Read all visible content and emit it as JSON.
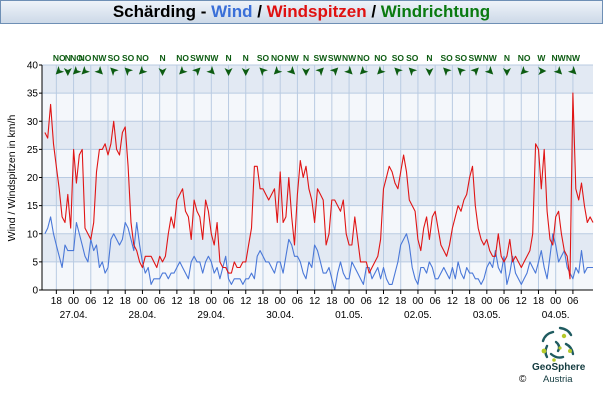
{
  "title": {
    "station": "Schärding",
    "sep1": " - ",
    "wind": "Wind",
    "sep2": " / ",
    "gusts": "Windspitzen",
    "sep3": " / ",
    "direction": "Windrichtung",
    "colors": {
      "station": "#000000",
      "wind": "#3a6fd8",
      "gusts": "#e01010",
      "direction": "#0a7a10"
    }
  },
  "logo": {
    "name": "GeoSphere",
    "sub": "Austria",
    "copyright": "©"
  },
  "chart_data": {
    "type": "line",
    "title": "Schärding - Wind / Windspitzen / Windrichtung",
    "xlabel": "",
    "ylabel": "Wind / Windspitzen in km/h",
    "ylim": [
      0,
      40
    ],
    "y_ticks": [
      0,
      5,
      10,
      15,
      20,
      25,
      30,
      35,
      40
    ],
    "xlim_hours": [
      -5,
      187
    ],
    "hour_ticks": [
      {
        "h": 0,
        "label": "18"
      },
      {
        "h": 6,
        "label": "00"
      },
      {
        "h": 12,
        "label": "06"
      },
      {
        "h": 18,
        "label": "12"
      },
      {
        "h": 24,
        "label": "18"
      },
      {
        "h": 30,
        "label": "00"
      },
      {
        "h": 36,
        "label": "06"
      },
      {
        "h": 42,
        "label": "12"
      },
      {
        "h": 48,
        "label": "18"
      },
      {
        "h": 54,
        "label": "00"
      },
      {
        "h": 60,
        "label": "06"
      },
      {
        "h": 66,
        "label": "12"
      },
      {
        "h": 72,
        "label": "18"
      },
      {
        "h": 78,
        "label": "00"
      },
      {
        "h": 84,
        "label": "06"
      },
      {
        "h": 90,
        "label": "12"
      },
      {
        "h": 96,
        "label": "18"
      },
      {
        "h": 102,
        "label": "00"
      },
      {
        "h": 108,
        "label": "06"
      },
      {
        "h": 114,
        "label": "12"
      },
      {
        "h": 120,
        "label": "18"
      },
      {
        "h": 126,
        "label": "00"
      },
      {
        "h": 132,
        "label": "06"
      },
      {
        "h": 138,
        "label": "12"
      },
      {
        "h": 144,
        "label": "18"
      },
      {
        "h": 150,
        "label": "00"
      },
      {
        "h": 156,
        "label": "06"
      },
      {
        "h": 162,
        "label": "12"
      },
      {
        "h": 168,
        "label": "18"
      },
      {
        "h": 174,
        "label": "00"
      },
      {
        "h": 180,
        "label": "06"
      }
    ],
    "date_labels": [
      {
        "h": 6,
        "label": "27.04."
      },
      {
        "h": 30,
        "label": "28.04."
      },
      {
        "h": 54,
        "label": "29.04."
      },
      {
        "h": 78,
        "label": "30.04."
      },
      {
        "h": 102,
        "label": "01.05."
      },
      {
        "h": 126,
        "label": "02.05."
      },
      {
        "h": 150,
        "label": "03.05."
      },
      {
        "h": 174,
        "label": "04.05."
      }
    ],
    "x_start": "26.04. 13:00",
    "time_step_hours": 1,
    "series": [
      {
        "name": "Wind",
        "color": "#4a78d8",
        "values": [
          10,
          11,
          13,
          10,
          8,
          6,
          4,
          8,
          7,
          7,
          7,
          12,
          10,
          8,
          6,
          5,
          9,
          7,
          8,
          4,
          5,
          3,
          4,
          9,
          10,
          9,
          8,
          9,
          12,
          11,
          9,
          7,
          12,
          8,
          5,
          3,
          4,
          1,
          2,
          2,
          2,
          3,
          3,
          2,
          3,
          3,
          4,
          5,
          4,
          3,
          2,
          5,
          6,
          5,
          5,
          3,
          5,
          6,
          5,
          3,
          4,
          2,
          4,
          6,
          2,
          1,
          2,
          2,
          2,
          1,
          2,
          2,
          3,
          2,
          6,
          7,
          6,
          5,
          5,
          4,
          3,
          5,
          5,
          3,
          6,
          9,
          8,
          6,
          6,
          5,
          3,
          2,
          5,
          4,
          8,
          7,
          5,
          3,
          3,
          4,
          2,
          0,
          3,
          5,
          3,
          2,
          2,
          5,
          4,
          3,
          2,
          1,
          4,
          4,
          2,
          3,
          4,
          2,
          4,
          2,
          1,
          1,
          3,
          5,
          8,
          9,
          10,
          8,
          4,
          2,
          1,
          4,
          4,
          3,
          5,
          4,
          2,
          2,
          3,
          4,
          3,
          2,
          4,
          2,
          5,
          3,
          2,
          4,
          3,
          3,
          2,
          2,
          1,
          2,
          4,
          5,
          4,
          7,
          4,
          3,
          6,
          1,
          3,
          6,
          3,
          2,
          1,
          2,
          3,
          5,
          4,
          3,
          5,
          7,
          4,
          2,
          6,
          10,
          8,
          5,
          6,
          7,
          4,
          3,
          2,
          4,
          3,
          7,
          3,
          4,
          4,
          4
        ]
      },
      {
        "name": "Windspitzen",
        "color": "#e01515",
        "values": [
          28,
          27,
          33,
          26,
          22,
          18,
          13,
          12,
          17,
          11,
          25,
          19,
          24,
          25,
          11,
          10,
          9,
          12,
          21,
          25,
          25,
          26,
          24,
          26,
          30,
          25,
          24,
          28,
          29,
          22,
          12,
          8,
          7,
          5,
          4,
          6,
          6,
          6,
          5,
          4,
          6,
          5,
          6,
          10,
          13,
          11,
          16,
          17,
          18,
          14,
          13,
          9,
          16,
          14,
          13,
          9,
          16,
          14,
          10,
          8,
          12,
          5,
          4,
          4,
          3,
          3,
          5,
          4,
          4,
          5,
          5,
          8,
          11,
          22,
          22,
          18,
          18,
          17,
          16,
          17,
          18,
          12,
          21,
          12,
          13,
          20,
          13,
          8,
          17,
          23,
          20,
          22,
          18,
          16,
          12,
          18,
          17,
          16,
          8,
          10,
          16,
          16,
          15,
          14,
          16,
          10,
          8,
          8,
          13,
          9,
          5,
          5,
          5,
          3,
          4,
          5,
          6,
          9,
          18,
          20,
          22,
          21,
          19,
          18,
          21,
          24,
          21,
          16,
          15,
          14,
          9,
          7,
          11,
          13,
          9,
          13,
          14,
          11,
          8,
          7,
          6,
          8,
          11,
          13,
          15,
          14,
          16,
          17,
          20,
          22,
          15,
          11,
          9,
          8,
          9,
          7,
          6,
          6,
          10,
          6,
          5,
          6,
          9,
          5,
          6,
          5,
          4,
          5,
          6,
          7,
          10,
          26,
          25,
          18,
          25,
          14,
          9,
          8,
          13,
          14,
          10,
          7,
          6,
          2,
          35,
          18,
          16,
          19,
          15,
          12,
          13,
          12
        ]
      }
    ]
  },
  "wind_directions": [
    {
      "h": 1,
      "label": "NO"
    },
    {
      "h": 4,
      "label": "N"
    },
    {
      "h": 7,
      "label": "NO"
    },
    {
      "h": 10,
      "label": "NO"
    },
    {
      "h": 15,
      "label": "NW"
    },
    {
      "h": 20,
      "label": "SO"
    },
    {
      "h": 25,
      "label": "SO"
    },
    {
      "h": 30,
      "label": "NO"
    },
    {
      "h": 37,
      "label": "N"
    },
    {
      "h": 44,
      "label": "NO"
    },
    {
      "h": 49,
      "label": "SW"
    },
    {
      "h": 54,
      "label": "NW"
    },
    {
      "h": 60,
      "label": "N"
    },
    {
      "h": 66,
      "label": "N"
    },
    {
      "h": 72,
      "label": "SO"
    },
    {
      "h": 77,
      "label": "NO"
    },
    {
      "h": 82,
      "label": "NW"
    },
    {
      "h": 87,
      "label": "N"
    },
    {
      "h": 92,
      "label": "SW"
    },
    {
      "h": 97,
      "label": "SW"
    },
    {
      "h": 102,
      "label": "NW"
    },
    {
      "h": 107,
      "label": "NO"
    },
    {
      "h": 113,
      "label": "NO"
    },
    {
      "h": 119,
      "label": "SO"
    },
    {
      "h": 124,
      "label": "SO"
    },
    {
      "h": 130,
      "label": "N"
    },
    {
      "h": 136,
      "label": "SO"
    },
    {
      "h": 141,
      "label": "SO"
    },
    {
      "h": 146,
      "label": "SW"
    },
    {
      "h": 151,
      "label": "NW"
    },
    {
      "h": 157,
      "label": "N"
    },
    {
      "h": 163,
      "label": "NO"
    },
    {
      "h": 169,
      "label": "W"
    },
    {
      "h": 175,
      "label": "NW"
    },
    {
      "h": 180,
      "label": "NW"
    }
  ]
}
